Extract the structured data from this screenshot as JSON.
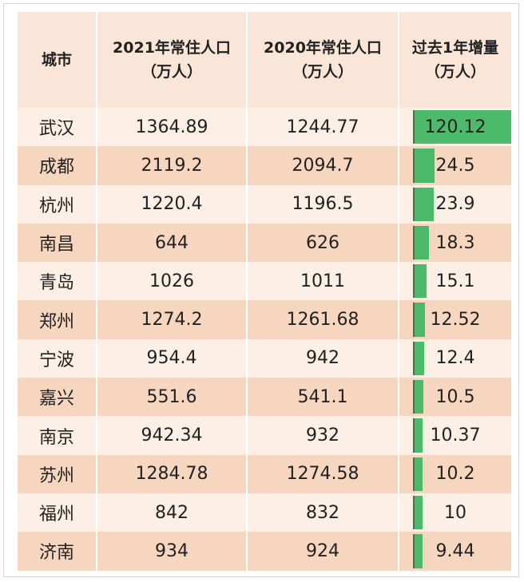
{
  "table": {
    "header": [
      [
        "城市"
      ],
      [
        "2021年常住人口",
        "（万人）"
      ],
      [
        "2020年常住人口",
        "（万人）"
      ],
      [
        "过去1年增量",
        "（万人）"
      ]
    ],
    "rows": [
      [
        "武汉",
        1364.89,
        1244.77,
        120.12
      ],
      [
        "成都",
        2119.2,
        2094.7,
        24.5
      ],
      [
        "杭州",
        1220.4,
        1196.5,
        23.9
      ],
      [
        "南昌",
        644,
        626,
        18.3
      ],
      [
        "青岛",
        1026,
        1011,
        15.1
      ],
      [
        "郑州",
        1274.2,
        1261.68,
        12.52
      ],
      [
        "宁波",
        954.4,
        942,
        12.4
      ],
      [
        "嘉兴",
        551.6,
        541.1,
        10.5
      ],
      [
        "南京",
        942.34,
        932,
        10.37
      ],
      [
        "苏州",
        1284.78,
        1274.58,
        10.2
      ],
      [
        "福州",
        842,
        832,
        10
      ],
      [
        "济南",
        934,
        924,
        9.44
      ]
    ]
  }
}
